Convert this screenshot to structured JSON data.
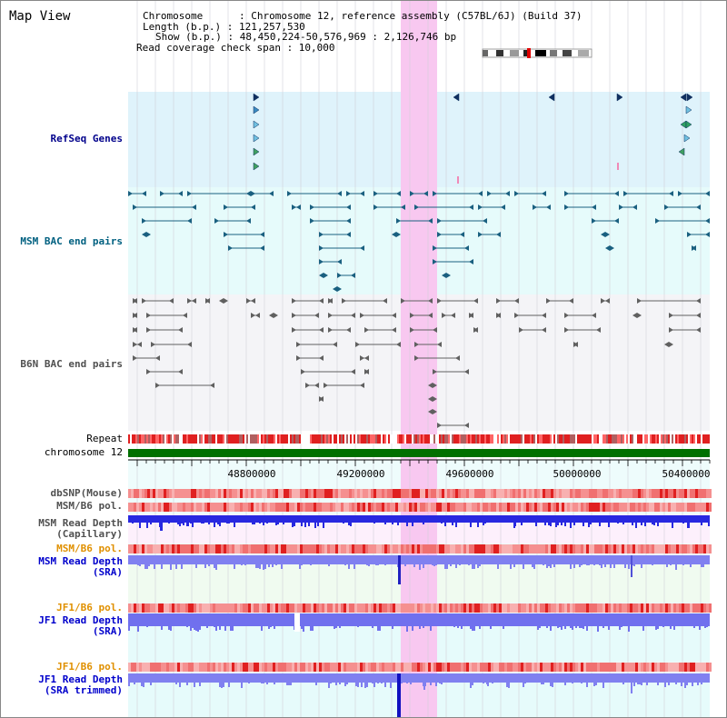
{
  "title": "Map View",
  "info": {
    "chromosome_row": "Chromosome      : Chromosome 12, reference assembly (C57BL/6J) (Build 37)",
    "length_row": "Length (b.p.) : 121,257,530",
    "show_row": "Show (b.p.) : 48,450,224-50,576,969 : 2,126,746 bp",
    "coverage_row": "Read coverage check span : 10,000"
  },
  "tracks": {
    "refseq": "RefSeq Genes",
    "msm_bac": "MSM BAC end pairs",
    "b6n_bac": "B6N BAC end pairs",
    "repeat": "Repeat",
    "chromosome": "chromosome 12",
    "dbsnp": "dbSNP(Mouse)",
    "msm_b6_pol": "MSM/B6 pol.",
    "msm_depth_cap": "MSM Read Depth\n(Capillary)",
    "msm_b6_pol_sra": "MSM/B6 pol.",
    "msm_depth_sra": "MSM Read Depth\n(SRA)",
    "jf1_pol": "JF1/B6 pol.",
    "jf1_depth": "JF1 Read Depth\n(SRA)",
    "jf1_pol_trim": "JF1/B6 pol.",
    "jf1_depth_trim": "JF1 Read Depth\n(SRA trimmed)"
  },
  "axis": {
    "ticks": [
      "48800000",
      "49200000",
      "49600000",
      "50000000",
      "50400000"
    ]
  },
  "colors": {
    "refseq_label": "#00008b",
    "msm_label": "#006080",
    "b6n_label": "#505050",
    "pol_sra_label": "#e09000",
    "depth_label": "#0000cc",
    "highlight": "#f8c8f0",
    "chromosome_bar": "#007000"
  }
}
